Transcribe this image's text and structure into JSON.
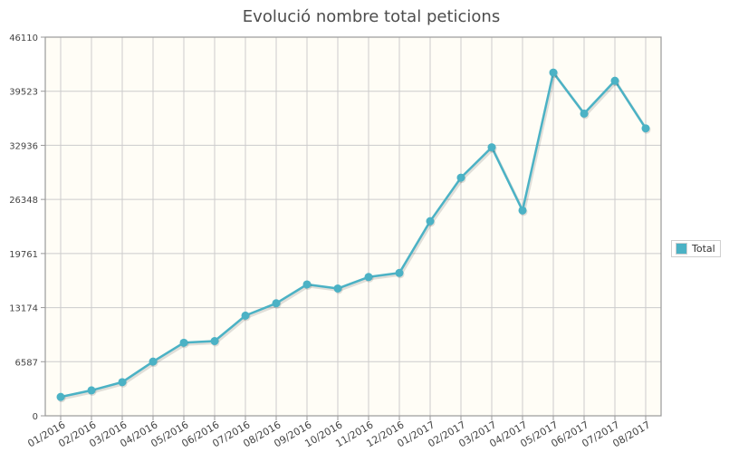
{
  "chart_data": {
    "type": "line",
    "title": "Evolució nombre total peticions",
    "categories": [
      "01/2016",
      "02/2016",
      "03/2016",
      "04/2016",
      "05/2016",
      "06/2016",
      "07/2016",
      "08/2016",
      "09/2016",
      "10/2016",
      "11/2016",
      "12/2016",
      "01/2017",
      "02/2017",
      "03/2017",
      "04/2017",
      "05/2017",
      "06/2017",
      "07/2017",
      "08/2017"
    ],
    "series": [
      {
        "name": "Total",
        "color": "#4bb2c5",
        "values": [
          2300,
          3100,
          4100,
          6600,
          8900,
          9100,
          12200,
          13700,
          16000,
          15500,
          16900,
          17400,
          23700,
          29000,
          32700,
          25000,
          41800,
          36800,
          40800,
          35000
        ]
      }
    ],
    "y_ticks": [
      "0",
      "6587",
      "13174",
      "19761",
      "26348",
      "32936",
      "39523",
      "46110"
    ],
    "ylim": [
      0,
      46110
    ],
    "grid": true,
    "legend_position": "right"
  }
}
